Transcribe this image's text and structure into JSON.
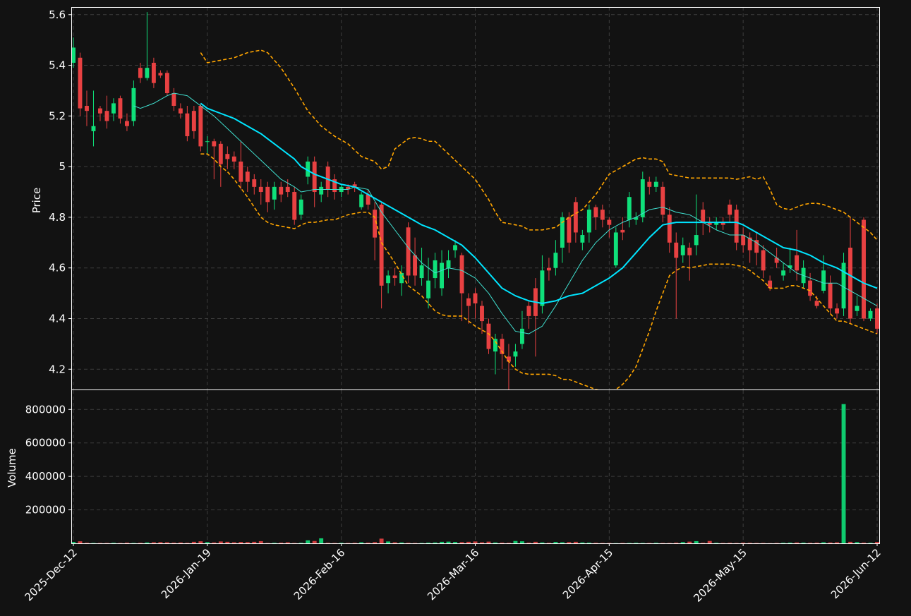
{
  "chart_data": {
    "type": "candlestick",
    "ylabel": "Price",
    "categories": [
      "2025-Dec-12",
      null,
      null,
      null,
      null,
      null,
      null,
      null,
      null,
      null,
      null,
      null,
      null,
      null,
      null,
      null,
      null,
      null,
      null,
      null,
      "2026-Jan-19",
      null,
      null,
      null,
      null,
      null,
      null,
      null,
      null,
      null,
      null,
      null,
      null,
      null,
      null,
      null,
      null,
      null,
      null,
      null,
      "2026-Feb-16",
      null,
      null,
      null,
      null,
      null,
      null,
      null,
      null,
      null,
      null,
      null,
      null,
      null,
      null,
      null,
      null,
      null,
      null,
      null,
      "2026-Mar-16",
      null,
      null,
      null,
      null,
      null,
      null,
      null,
      null,
      null,
      null,
      null,
      null,
      null,
      null,
      null,
      null,
      null,
      null,
      null,
      "2026-Apr-15",
      null,
      null,
      null,
      null,
      null,
      null,
      null,
      null,
      null,
      null,
      null,
      null,
      null,
      null,
      null,
      null,
      null,
      null,
      null,
      "2026-May-15",
      null,
      null,
      null,
      null,
      null,
      null,
      null,
      null,
      null,
      null,
      null,
      null,
      null,
      null,
      null,
      null,
      null,
      null,
      null,
      "2026-Jun-12"
    ],
    "open": [
      5.41,
      5.43,
      5.24,
      5.14,
      5.23,
      5.22,
      5.21,
      5.27,
      5.18,
      5.18,
      5.39,
      5.35,
      5.41,
      5.37,
      5.37,
      5.29,
      5.23,
      5.21,
      5.22,
      5.24,
      5.1,
      5.1,
      5.09,
      5.05,
      5.04,
      5.02,
      4.98,
      4.95,
      4.92,
      4.92,
      4.87,
      4.92,
      4.92,
      4.9,
      4.81,
      4.96,
      5.02,
      4.89,
      5.0,
      4.95,
      4.9,
      4.92,
      4.93,
      4.84,
      4.89,
      4.83,
      4.85,
      4.54,
      4.57,
      4.54,
      4.76,
      4.65,
      4.56,
      4.48,
      4.56,
      4.52,
      4.6,
      4.67,
      4.65,
      4.48,
      4.5,
      4.45,
      4.38,
      4.27,
      4.32,
      4.25,
      4.25,
      4.3,
      4.45,
      4.52,
      4.45,
      4.6,
      4.6,
      4.68,
      4.8,
      4.86,
      4.7,
      4.74,
      4.84,
      4.83,
      4.79,
      4.61,
      4.75,
      4.79,
      4.79,
      4.8,
      4.94,
      4.92,
      4.92,
      4.81,
      4.7,
      4.65,
      4.68,
      4.69,
      4.83,
      4.78,
      4.77,
      4.78,
      4.85,
      4.83,
      4.73,
      4.72,
      4.71,
      4.67,
      4.55,
      4.64,
      4.57,
      4.6,
      4.65,
      4.54,
      4.55,
      4.47,
      4.51,
      4.54,
      4.44,
      4.44,
      4.68,
      4.43,
      4.79,
      4.4,
      4.44
    ],
    "high": [
      5.51,
      5.45,
      5.3,
      5.3,
      5.24,
      5.28,
      5.27,
      5.28,
      5.21,
      5.34,
      5.41,
      5.61,
      5.43,
      5.38,
      5.38,
      5.31,
      5.25,
      5.24,
      5.24,
      5.25,
      5.12,
      5.11,
      5.1,
      5.08,
      5.06,
      5.1,
      5.0,
      4.97,
      4.95,
      4.94,
      4.94,
      4.94,
      4.95,
      4.92,
      4.89,
      5.04,
      5.04,
      4.94,
      5.02,
      4.97,
      4.93,
      4.93,
      4.94,
      4.9,
      4.91,
      4.86,
      4.86,
      4.59,
      4.6,
      4.61,
      4.78,
      4.72,
      4.68,
      4.64,
      4.66,
      4.67,
      4.67,
      4.71,
      4.66,
      4.5,
      4.52,
      4.47,
      4.4,
      4.34,
      4.34,
      4.3,
      4.3,
      4.43,
      4.47,
      4.56,
      4.65,
      4.64,
      4.71,
      4.82,
      4.82,
      4.88,
      4.75,
      4.85,
      4.85,
      4.85,
      4.8,
      4.76,
      4.8,
      4.9,
      4.82,
      4.98,
      4.96,
      4.96,
      4.94,
      4.84,
      4.74,
      4.72,
      4.7,
      4.89,
      4.86,
      4.8,
      4.8,
      4.8,
      4.87,
      4.85,
      4.76,
      4.74,
      4.74,
      4.69,
      4.57,
      4.68,
      4.62,
      4.68,
      4.75,
      4.63,
      4.58,
      4.49,
      4.65,
      4.57,
      4.46,
      4.66,
      4.8,
      4.49,
      4.8,
      4.44,
      4.46
    ],
    "low": [
      5.39,
      5.2,
      5.16,
      5.08,
      5.18,
      5.15,
      5.18,
      5.17,
      5.14,
      5.16,
      5.33,
      5.34,
      5.31,
      5.35,
      5.28,
      5.22,
      5.19,
      5.1,
      5.11,
      5.06,
      5.05,
      4.95,
      4.92,
      4.99,
      4.99,
      4.91,
      4.9,
      4.89,
      4.85,
      4.82,
      4.83,
      4.86,
      4.88,
      4.77,
      4.79,
      4.93,
      4.84,
      4.86,
      4.88,
      4.87,
      4.88,
      4.89,
      4.9,
      4.83,
      4.83,
      4.63,
      4.44,
      4.5,
      4.53,
      4.49,
      4.54,
      4.53,
      4.53,
      4.44,
      4.52,
      4.49,
      4.56,
      4.64,
      4.39,
      4.38,
      4.4,
      4.34,
      4.26,
      4.18,
      4.2,
      4.12,
      4.21,
      4.28,
      4.36,
      4.25,
      4.42,
      4.55,
      4.57,
      4.62,
      4.66,
      4.7,
      4.67,
      4.7,
      4.75,
      4.76,
      4.72,
      4.6,
      4.71,
      4.76,
      4.77,
      4.78,
      4.89,
      4.9,
      4.78,
      4.66,
      4.4,
      4.62,
      4.55,
      4.65,
      4.73,
      4.74,
      4.75,
      4.75,
      4.78,
      4.67,
      4.66,
      4.62,
      4.61,
      4.56,
      4.51,
      4.6,
      4.55,
      4.58,
      4.55,
      4.52,
      4.47,
      4.44,
      4.5,
      4.42,
      4.4,
      4.41,
      4.38,
      4.41,
      4.39,
      4.39,
      4.34
    ],
    "close": [
      5.47,
      5.23,
      5.22,
      5.16,
      5.21,
      5.18,
      5.25,
      5.19,
      5.16,
      5.31,
      5.35,
      5.39,
      5.33,
      5.36,
      5.29,
      5.24,
      5.21,
      5.12,
      5.14,
      5.08,
      5.1,
      5.08,
      5.01,
      5.03,
      5.02,
      4.94,
      4.94,
      4.92,
      4.9,
      4.86,
      4.92,
      4.89,
      4.9,
      4.79,
      4.87,
      5.02,
      4.9,
      4.92,
      4.91,
      4.9,
      4.92,
      4.91,
      4.92,
      4.89,
      4.85,
      4.72,
      4.53,
      4.57,
      4.56,
      4.58,
      4.57,
      4.57,
      4.61,
      4.55,
      4.63,
      4.62,
      4.63,
      4.69,
      4.5,
      4.45,
      4.46,
      4.39,
      4.28,
      4.32,
      4.26,
      4.23,
      4.27,
      4.36,
      4.41,
      4.41,
      4.59,
      4.59,
      4.66,
      4.8,
      4.7,
      4.74,
      4.73,
      4.83,
      4.8,
      4.79,
      4.77,
      4.74,
      4.74,
      4.88,
      4.8,
      4.95,
      4.92,
      4.94,
      4.81,
      4.7,
      4.64,
      4.69,
      4.65,
      4.73,
      4.78,
      4.77,
      4.78,
      4.77,
      4.81,
      4.7,
      4.69,
      4.67,
      4.66,
      4.59,
      4.52,
      4.62,
      4.59,
      4.61,
      4.59,
      4.6,
      4.49,
      4.45,
      4.59,
      4.44,
      4.42,
      4.62,
      4.4,
      4.45,
      4.4,
      4.43,
      4.36
    ],
    "up_color": "#0fe07a",
    "down_color": "#e84142",
    "ylim": [
      4.12,
      5.63
    ],
    "yticks": [
      4.2,
      4.4,
      4.6,
      4.8,
      5.0,
      5.2,
      5.4,
      5.6
    ],
    "grid": true,
    "series": [
      {
        "color": "#ffa500",
        "style": "dashed",
        "width": 1.6,
        "values": [
          null,
          null,
          null,
          null,
          null,
          null,
          null,
          null,
          null,
          null,
          null,
          null,
          null,
          null,
          null,
          null,
          null,
          null,
          null,
          5.45,
          5.41,
          5.415,
          5.42,
          5.425,
          5.43,
          5.44,
          5.45,
          5.455,
          5.46,
          5.45,
          5.42,
          5.39,
          5.35,
          5.31,
          5.265,
          5.22,
          5.19,
          5.16,
          5.14,
          5.12,
          5.105,
          5.09,
          5.065,
          5.04,
          5.03,
          5.02,
          4.99,
          5.0,
          5.07,
          5.09,
          5.11,
          5.115,
          5.11,
          5.1,
          5.1,
          5.075,
          5.05,
          5.025,
          5.0,
          4.975,
          4.95,
          4.91,
          4.87,
          4.82,
          4.78,
          4.775,
          4.77,
          4.765,
          4.75,
          4.75,
          4.75,
          4.755,
          4.76,
          4.78,
          4.8,
          4.815,
          4.83,
          4.86,
          4.89,
          4.93,
          4.97,
          4.985,
          5.0,
          5.015,
          5.03,
          5.035,
          5.03,
          5.03,
          5.02,
          4.97,
          4.965,
          4.96,
          4.955,
          4.955,
          4.955,
          4.955,
          4.955,
          4.955,
          4.955,
          4.95,
          4.955,
          4.96,
          4.95,
          4.96,
          4.91,
          4.85,
          4.835,
          4.83,
          4.84,
          4.85,
          4.855,
          4.855,
          4.85,
          4.84,
          4.83,
          4.82,
          4.8,
          4.78,
          4.76,
          4.74,
          4.71
        ]
      },
      {
        "color": "#ffa500",
        "style": "dashed",
        "width": 1.6,
        "values": [
          null,
          null,
          null,
          null,
          null,
          null,
          null,
          null,
          null,
          null,
          null,
          null,
          null,
          null,
          null,
          null,
          null,
          null,
          null,
          5.05,
          5.05,
          5.03,
          5.0,
          4.98,
          4.95,
          4.915,
          4.88,
          4.84,
          4.8,
          4.78,
          4.77,
          4.765,
          4.76,
          4.755,
          4.77,
          4.78,
          4.78,
          4.785,
          4.79,
          4.79,
          4.8,
          4.81,
          4.815,
          4.82,
          4.82,
          4.8,
          4.7,
          4.66,
          4.62,
          4.575,
          4.53,
          4.51,
          4.49,
          4.46,
          4.43,
          4.415,
          4.41,
          4.41,
          4.41,
          4.39,
          4.37,
          4.355,
          4.34,
          4.31,
          4.27,
          4.23,
          4.2,
          4.185,
          4.18,
          4.18,
          4.18,
          4.18,
          4.175,
          4.16,
          4.16,
          4.15,
          4.14,
          4.13,
          4.12,
          4.115,
          4.11,
          4.12,
          4.14,
          4.17,
          4.21,
          4.28,
          4.35,
          4.43,
          4.5,
          4.57,
          4.59,
          4.605,
          4.6,
          4.605,
          4.61,
          4.615,
          4.615,
          4.615,
          4.615,
          4.61,
          4.605,
          4.59,
          4.57,
          4.55,
          4.52,
          4.52,
          4.52,
          4.53,
          4.53,
          4.52,
          4.51,
          4.48,
          4.45,
          4.42,
          4.39,
          4.39,
          4.38,
          4.37,
          4.36,
          4.35,
          4.34
        ]
      },
      {
        "color": "#40e0d0",
        "style": "solid",
        "width": 1,
        "values": [
          null,
          null,
          null,
          null,
          null,
          null,
          null,
          null,
          null,
          5.24,
          5.23,
          5.24,
          5.25,
          5.265,
          5.28,
          5.29,
          5.285,
          5.28,
          5.26,
          5.24,
          5.22,
          5.2,
          5.175,
          5.15,
          5.125,
          5.1,
          5.075,
          5.05,
          5.025,
          5.0,
          4.975,
          4.95,
          4.935,
          4.92,
          4.9,
          4.905,
          4.91,
          4.91,
          4.91,
          4.91,
          4.91,
          4.91,
          4.92,
          4.915,
          4.91,
          4.865,
          4.82,
          4.785,
          4.75,
          4.715,
          4.68,
          4.65,
          4.62,
          4.6,
          4.58,
          4.59,
          4.6,
          4.595,
          4.59,
          4.575,
          4.56,
          4.53,
          4.5,
          4.46,
          4.42,
          4.385,
          4.35,
          4.345,
          4.34,
          4.355,
          4.37,
          4.41,
          4.45,
          4.495,
          4.54,
          4.585,
          4.63,
          4.665,
          4.7,
          4.725,
          4.75,
          4.765,
          4.78,
          4.79,
          4.8,
          4.815,
          4.83,
          4.835,
          4.84,
          4.83,
          4.82,
          4.815,
          4.81,
          4.795,
          4.78,
          4.765,
          4.75,
          4.74,
          4.73,
          4.73,
          4.73,
          4.715,
          4.7,
          4.68,
          4.66,
          4.64,
          4.62,
          4.6,
          4.58,
          4.57,
          4.56,
          4.55,
          4.54,
          4.54,
          4.54,
          4.525,
          4.51,
          4.495,
          4.48,
          4.465,
          4.45
        ]
      },
      {
        "color": "#00e5ff",
        "style": "solid",
        "width": 2,
        "values": [
          null,
          null,
          null,
          null,
          null,
          null,
          null,
          null,
          null,
          null,
          null,
          null,
          null,
          null,
          null,
          null,
          null,
          null,
          null,
          5.25,
          5.23,
          5.22,
          5.21,
          5.2,
          5.19,
          5.175,
          5.16,
          5.145,
          5.13,
          5.11,
          5.09,
          5.07,
          5.05,
          5.03,
          5.0,
          4.985,
          4.97,
          4.96,
          4.95,
          4.94,
          4.93,
          4.925,
          4.92,
          4.905,
          4.89,
          4.875,
          4.86,
          4.845,
          4.83,
          4.815,
          4.8,
          4.785,
          4.77,
          4.76,
          4.75,
          4.735,
          4.72,
          4.705,
          4.69,
          4.665,
          4.64,
          4.61,
          4.58,
          4.55,
          4.52,
          4.505,
          4.49,
          4.48,
          4.47,
          4.465,
          4.46,
          4.465,
          4.47,
          4.48,
          4.49,
          4.495,
          4.5,
          4.515,
          4.53,
          4.545,
          4.56,
          4.58,
          4.6,
          4.63,
          4.66,
          4.69,
          4.72,
          4.745,
          4.77,
          4.775,
          4.78,
          4.78,
          4.78,
          4.78,
          4.78,
          4.78,
          4.78,
          4.78,
          4.78,
          4.78,
          4.77,
          4.755,
          4.74,
          4.725,
          4.71,
          4.695,
          4.68,
          4.675,
          4.67,
          4.66,
          4.65,
          4.635,
          4.62,
          4.61,
          4.6,
          4.585,
          4.57,
          4.555,
          4.54,
          4.53,
          4.52
        ]
      }
    ],
    "volume": {
      "ylabel": "Volume",
      "ylim": [
        0,
        915000
      ],
      "yticks": [
        200000,
        400000,
        600000,
        800000
      ],
      "values": [
        8000,
        12000,
        3000,
        2000,
        2000,
        2000,
        3000,
        2000,
        4000,
        2000,
        3000,
        5000,
        6000,
        7000,
        6000,
        4000,
        5000,
        3000,
        9000,
        12000,
        7000,
        5000,
        11000,
        9000,
        6000,
        8000,
        7000,
        9000,
        13000,
        2000,
        3000,
        4000,
        6000,
        2000,
        3000,
        18000,
        14000,
        30000,
        3000,
        2000,
        3000,
        2000,
        3000,
        6000,
        4000,
        7000,
        28000,
        11000,
        6000,
        5000,
        3000,
        2000,
        2000,
        4000,
        5000,
        9000,
        10000,
        8000,
        7000,
        9000,
        11000,
        6000,
        10000,
        5000,
        4000,
        3000,
        14000,
        12000,
        4000,
        9000,
        5000,
        3000,
        8000,
        6000,
        7000,
        9000,
        5000,
        4000,
        3000,
        2000,
        2000,
        1000,
        2000,
        2000,
        3000,
        2000,
        2000,
        3000,
        2000,
        2000,
        4000,
        7000,
        10000,
        13000,
        3000,
        14000,
        3000,
        2000,
        3000,
        2000,
        4000,
        3000,
        2000,
        2000,
        1000,
        2000,
        3000,
        4000,
        5000,
        4000,
        3000,
        4000,
        6000,
        5000,
        6000,
        832000,
        9000,
        7000,
        4000,
        3000,
        8000
      ]
    }
  }
}
